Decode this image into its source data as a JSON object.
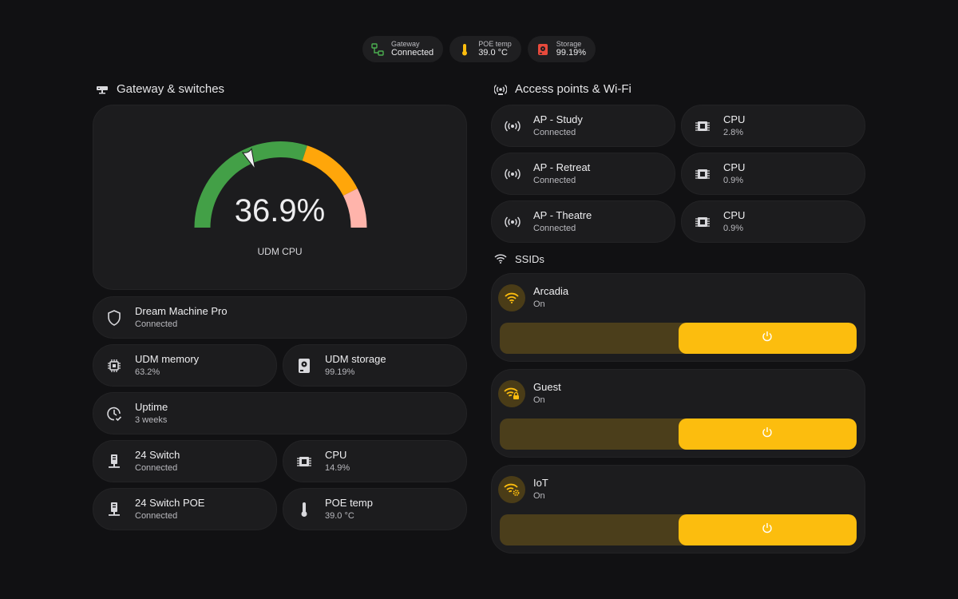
{
  "status_chips": [
    {
      "label": "Gateway",
      "value": "Connected",
      "icon": "gateway-network-icon",
      "color": "#4caf50"
    },
    {
      "label": "POE temp",
      "value": "39.0 °C",
      "icon": "thermometer-icon",
      "color": "#fcbd0e"
    },
    {
      "label": "Storage",
      "value": "99.19%",
      "icon": "harddisk-icon",
      "color": "#e84a3c"
    }
  ],
  "gateway_section": {
    "title": "Gateway & switches",
    "gauge": {
      "value": "36.9%",
      "percent": 36.9,
      "label": "UDM CPU",
      "severity": {
        "green_to": 60,
        "orange_to": 85,
        "red_to": 100
      },
      "colors": {
        "green": "#43a047",
        "orange": "#ffa60a",
        "red": "#ffb4ab"
      }
    },
    "tiles": {
      "dream_machine": {
        "title": "Dream Machine Pro",
        "sub": "Connected",
        "icon": "shield-icon"
      },
      "udm_memory": {
        "title": "UDM memory",
        "sub": "63.2%",
        "icon": "chip-icon"
      },
      "udm_storage": {
        "title": "UDM storage",
        "sub": "99.19%",
        "icon": "harddisk-icon"
      },
      "uptime": {
        "title": "Uptime",
        "sub": "3 weeks",
        "icon": "clock-check-icon"
      },
      "switch24": {
        "title": "24 Switch",
        "sub": "Connected",
        "icon": "switch-icon"
      },
      "switch24_cpu": {
        "title": "CPU",
        "sub": "14.9%",
        "icon": "cpu-icon"
      },
      "switch24poe": {
        "title": "24 Switch POE",
        "sub": "Connected",
        "icon": "switch-icon"
      },
      "poe_temp": {
        "title": "POE temp",
        "sub": "39.0 °C",
        "icon": "thermometer-icon"
      }
    }
  },
  "ap_section": {
    "title": "Access points & Wi-Fi",
    "aps": [
      {
        "name": "AP - Study",
        "status": "Connected",
        "cpu_label": "CPU",
        "cpu": "2.8%"
      },
      {
        "name": "AP - Retreat",
        "status": "Connected",
        "cpu_label": "CPU",
        "cpu": "0.9%"
      },
      {
        "name": "AP - Theatre",
        "status": "Connected",
        "cpu_label": "CPU",
        "cpu": "0.9%"
      }
    ]
  },
  "ssid_section": {
    "title": "SSIDs",
    "ssids": [
      {
        "name": "Arcadia",
        "state": "On",
        "icon": "wifi-icon",
        "level": 0.5
      },
      {
        "name": "Guest",
        "state": "On",
        "icon": "wifi-lock-icon",
        "level": 0.5
      },
      {
        "name": "IoT",
        "state": "On",
        "icon": "wifi-cog-icon",
        "level": 0.5
      }
    ]
  },
  "colors": {
    "accent": "#fcbd0e",
    "background": "#111113",
    "card": "#1c1c1e"
  }
}
